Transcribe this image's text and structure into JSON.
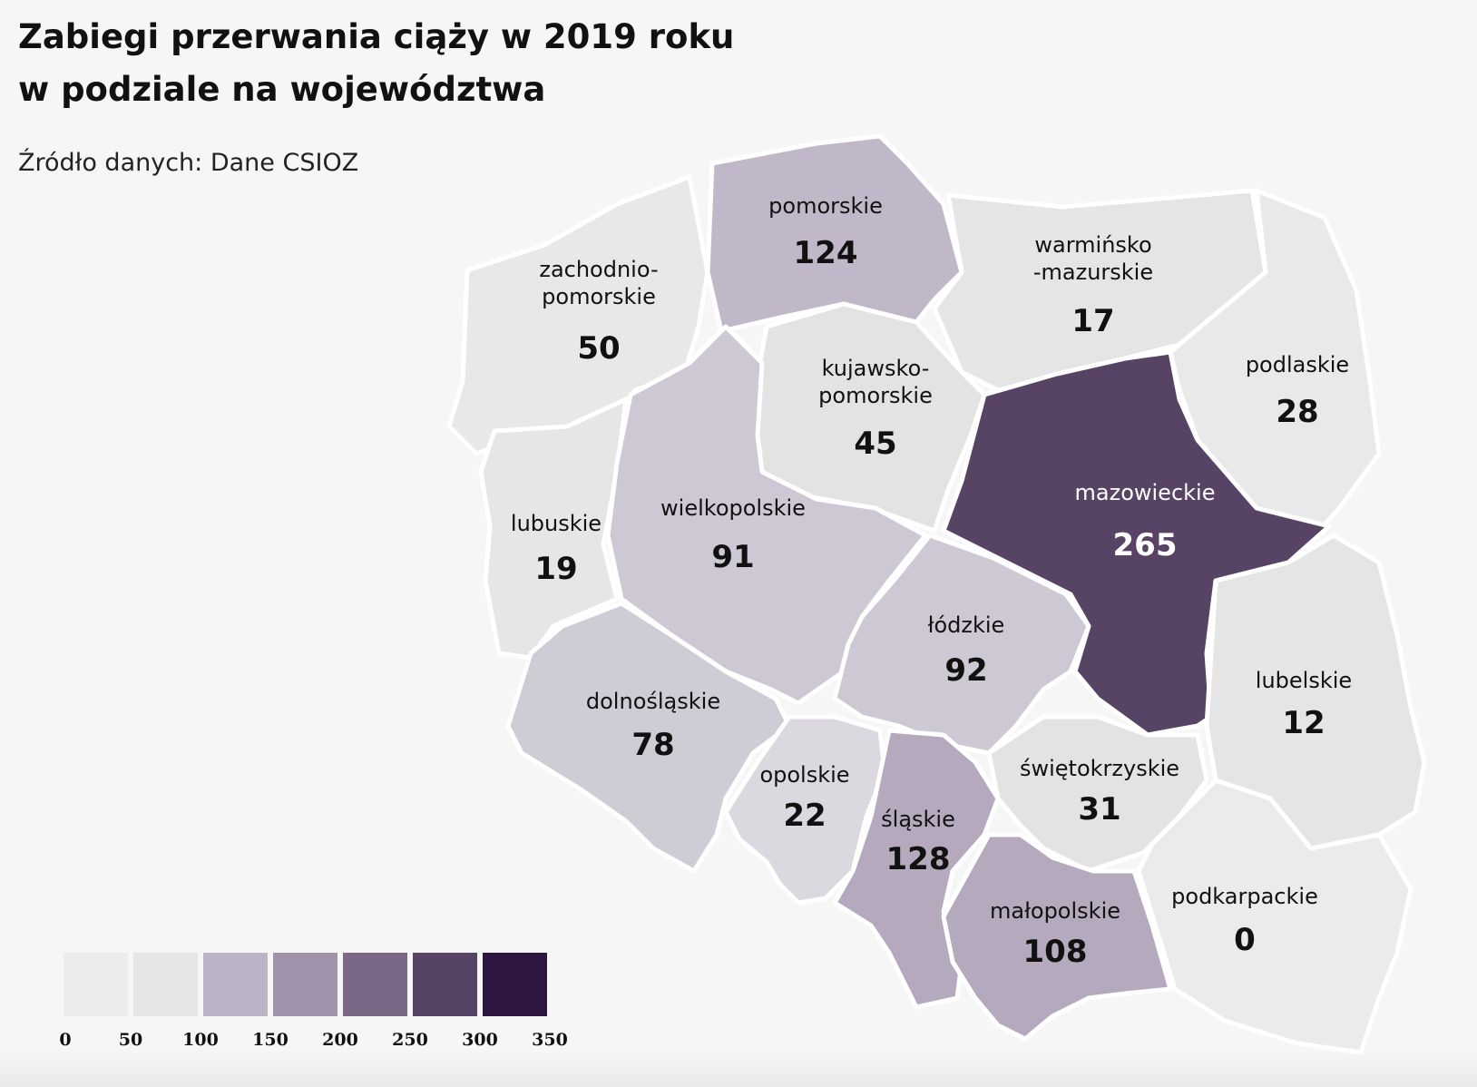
{
  "title_line1": "Zabiegi przerwania ciąży w 2019 roku",
  "title_line2": "w podziale na województwa",
  "source": "Źródło danych: Dane CSIOZ",
  "regions": [
    {
      "id": "zachodniopomorskie",
      "label": [
        "zachodnio-",
        "pomorskie"
      ],
      "value": 50
    },
    {
      "id": "pomorskie",
      "label": [
        "pomorskie"
      ],
      "value": 124
    },
    {
      "id": "warminsko-mazurskie",
      "label": [
        "warmińsko",
        "-mazurskie"
      ],
      "value": 17
    },
    {
      "id": "podlaskie",
      "label": [
        "podlaskie"
      ],
      "value": 28
    },
    {
      "id": "kujawsko-pomorskie",
      "label": [
        "kujawsko-",
        "pomorskie"
      ],
      "value": 45
    },
    {
      "id": "lubuskie",
      "label": [
        "lubuskie"
      ],
      "value": 19
    },
    {
      "id": "wielkopolskie",
      "label": [
        "wielkopolskie"
      ],
      "value": 91
    },
    {
      "id": "mazowieckie",
      "label": [
        "mazowieckie"
      ],
      "value": 265
    },
    {
      "id": "lodzkie",
      "label": [
        "łódzkie"
      ],
      "value": 92
    },
    {
      "id": "lubelskie",
      "label": [
        "lubelskie"
      ],
      "value": 12
    },
    {
      "id": "dolnoslaskie",
      "label": [
        "dolnośląskie"
      ],
      "value": 78
    },
    {
      "id": "opolskie",
      "label": [
        "opolskie"
      ],
      "value": 22
    },
    {
      "id": "slaskie",
      "label": [
        "śląskie"
      ],
      "value": 128
    },
    {
      "id": "swietokrzyskie",
      "label": [
        "świętokrzyskie"
      ],
      "value": 31
    },
    {
      "id": "malopolskie",
      "label": [
        "małopolskie"
      ],
      "value": 108
    },
    {
      "id": "podkarpackie",
      "label": [
        "podkarpackie"
      ],
      "value": 0
    }
  ],
  "legend": {
    "ticks": [
      "0",
      "50",
      "100",
      "150",
      "200",
      "250",
      "300",
      "350"
    ],
    "colors": [
      "#ececec",
      "#e6e6e6",
      "#bcb4c6",
      "#9f93ab",
      "#7b6887",
      "#574464",
      "#2d1740"
    ]
  },
  "colors": {
    "mazowieckie": "#574464",
    "high": "#b4a9bd",
    "mid": "#cdc8d3",
    "low": "#e3e3e3",
    "lowest": "#e8e8e8",
    "dark_text": "#111111",
    "light_text": "#ffffff"
  }
}
